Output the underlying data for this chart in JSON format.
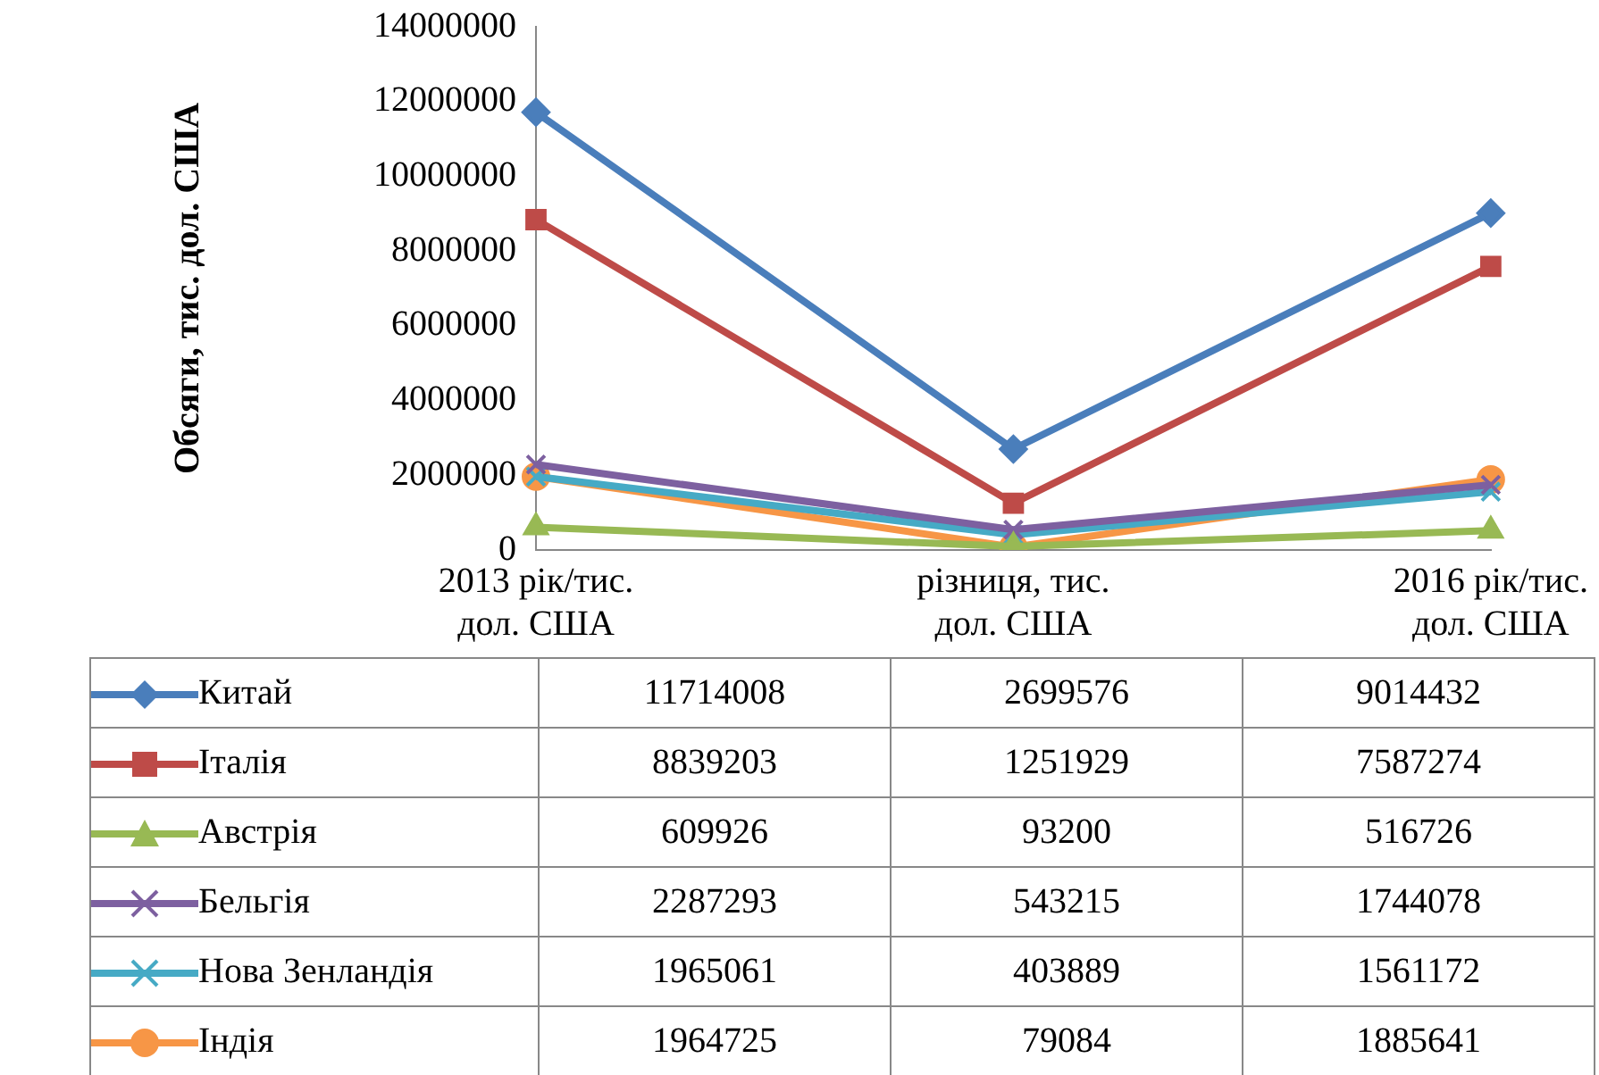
{
  "chart_data": {
    "type": "line",
    "ylabel": "Обсяги, тис. дол. США",
    "categories": [
      "2013 рік/тис. дол. США",
      "різниця, тис. дол. США",
      "2016 рік/тис. дол. США"
    ],
    "series": [
      {
        "name": "Китай",
        "color": "#4a7ebb",
        "marker": "diamond",
        "values": [
          11714008,
          2699576,
          9014432
        ]
      },
      {
        "name": "Італія",
        "color": "#be4b48",
        "marker": "square",
        "values": [
          8839203,
          1251929,
          7587274
        ]
      },
      {
        "name": "Австрія",
        "color": "#98b954",
        "marker": "triangle",
        "values": [
          609926,
          93200,
          516726
        ]
      },
      {
        "name": "Бельгія",
        "color": "#7d60a0",
        "marker": "cross",
        "values": [
          2287293,
          543215,
          1744078
        ]
      },
      {
        "name": "Нова Зенландія",
        "color": "#46aac5",
        "marker": "cross",
        "values": [
          1965061,
          403889,
          1561172
        ]
      },
      {
        "name": "Індія",
        "color": "#f79646",
        "marker": "circle",
        "values": [
          1964725,
          79084,
          1885641
        ]
      }
    ],
    "ylim": [
      0,
      14000000
    ],
    "yticks": [
      0,
      2000000,
      4000000,
      6000000,
      8000000,
      10000000,
      12000000,
      14000000
    ],
    "grid": false,
    "legend": "bottom",
    "data_labels": true,
    "line_style": "solid"
  }
}
